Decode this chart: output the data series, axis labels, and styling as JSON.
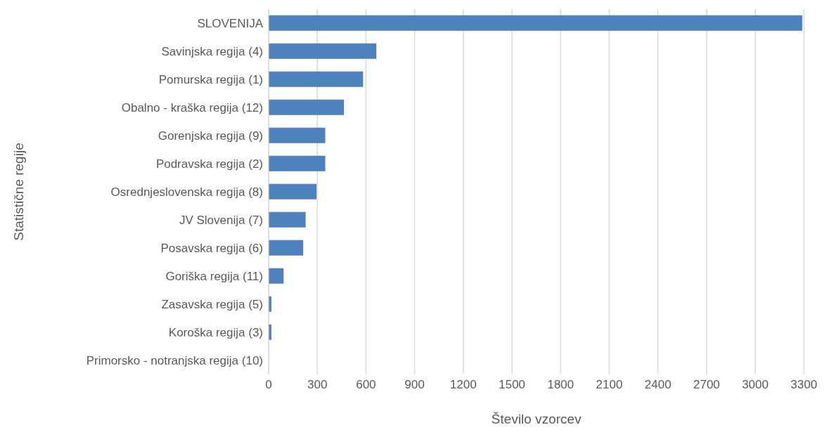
{
  "chart_data": {
    "type": "bar",
    "orientation": "horizontal",
    "xlabel": "Število vzorcev",
    "ylabel": "Statistične regije",
    "categories": [
      "SLOVENIJA",
      "Savinjska regija (4)",
      "Pomurska regija (1)",
      "Obalno - kraška regija (12)",
      "Gorenjska regija (9)",
      "Podravska regija (2)",
      "Osrednjeslovenska regija (8)",
      "JV Slovenija (7)",
      "Posavska regija (6)",
      "Goriška regija (11)",
      "Zasavska regija (5)",
      "Koroška regija (3)",
      "Primorsko - notranjska regija (10)"
    ],
    "values": [
      3290,
      664,
      582,
      464,
      349,
      349,
      295,
      228,
      213,
      92,
      17,
      17,
      0
    ],
    "color": "#4f81bd",
    "xlim": [
      0,
      3300
    ],
    "xticks": [
      0,
      300,
      600,
      900,
      1200,
      1500,
      1800,
      2100,
      2400,
      2700,
      3000,
      3300
    ],
    "grid": "x"
  }
}
